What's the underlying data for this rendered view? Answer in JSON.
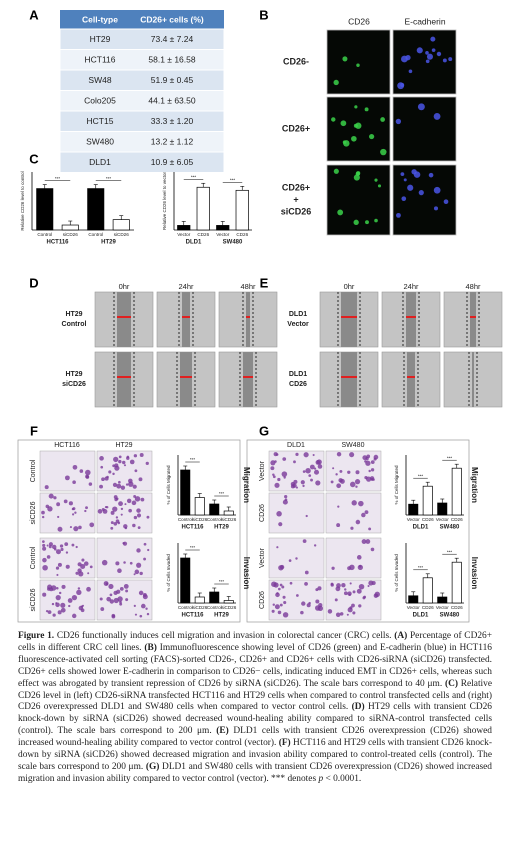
{
  "panel_labels": [
    "A",
    "B",
    "C",
    "D",
    "E",
    "F",
    "G"
  ],
  "table": {
    "header": [
      "Cell-type",
      "CD26+ cells (%)"
    ],
    "rows": [
      [
        "HT29",
        "73.4 ± 7.24"
      ],
      [
        "HCT116",
        "58.1 ± 16.58"
      ],
      [
        "SW48",
        "51.9 ± 0.45"
      ],
      [
        "Colo205",
        "44.1 ± 63.50"
      ],
      [
        "HCT15",
        "33.3 ± 1.20"
      ],
      [
        "SW480",
        "13.2 ± 1.12"
      ],
      [
        "DLD1",
        "10.9 ± 6.05"
      ]
    ]
  },
  "panel_b": {
    "columns": [
      "CD26",
      "E-cadherin"
    ],
    "rows": [
      [
        "CD26-"
      ],
      [
        "CD26+"
      ],
      [
        "CD26+",
        "+",
        "siCD26"
      ]
    ]
  },
  "panel_d": {
    "times": [
      "0hr",
      "24hr",
      "48hr"
    ],
    "rows": [
      [
        "HT29",
        "Control"
      ],
      [
        "HT29",
        "siCD26"
      ]
    ]
  },
  "panel_e": {
    "times": [
      "0hr",
      "24hr",
      "48hr"
    ],
    "rows": [
      [
        "DLD1",
        "Vector"
      ],
      [
        "DLD1",
        "CD26"
      ]
    ]
  },
  "panel_f": {
    "columns": [
      "HCT116",
      "HT29"
    ],
    "rows": [
      "Control",
      "siCD26",
      "Control",
      "siCD26"
    ]
  },
  "panel_g": {
    "columns": [
      "DLD1",
      "SW480"
    ],
    "rows": [
      "Vector",
      "CD26",
      "Vector",
      "CD26"
    ]
  },
  "charts": [
    {
      "type": "bar",
      "y_label": "Relative CD26 level to control",
      "categories": [
        "Control",
        "siCD26",
        "Control",
        "siCD26"
      ],
      "groups": [
        "HCT116",
        "HT29"
      ],
      "values": [
        1.0,
        0.12,
        1.0,
        0.25
      ],
      "colors": [
        "#000000",
        "#ffffff",
        "#000000",
        "#ffffff"
      ],
      "ylim": [
        0,
        1.4
      ],
      "annotations": [
        "***",
        "***"
      ]
    },
    {
      "type": "bar",
      "y_label": "Relative CD26 level to vector",
      "categories": [
        "Vector",
        "CD26",
        "Vector",
        "CD26"
      ],
      "groups": [
        "DLD1",
        "SW480"
      ],
      "values": [
        0.15,
        1.4,
        0.15,
        1.3
      ],
      "colors": [
        "#000000",
        "#ffffff",
        "#000000",
        "#ffffff"
      ],
      "ylim": [
        0,
        1.9
      ],
      "annotations": [
        "***",
        "***"
      ]
    },
    {
      "type": "bar",
      "y_label": "% of Cells Migrated",
      "side_label": "Migration",
      "categories": [
        "Control",
        "siCD26",
        "Control",
        "siCD26"
      ],
      "groups": [
        "HCT116",
        "HT29"
      ],
      "values": [
        90,
        35,
        22,
        8
      ],
      "colors": [
        "#000000",
        "#ffffff",
        "#000000",
        "#ffffff"
      ],
      "ylim": [
        0,
        120
      ],
      "annotations": [
        "***",
        "***"
      ]
    },
    {
      "type": "bar",
      "y_label": "% of Cells Invaded",
      "side_label": "Invasion",
      "categories": [
        "Control",
        "siCD26",
        "Control",
        "siCD26"
      ],
      "groups": [
        "HCT116",
        "HT29"
      ],
      "values": [
        90,
        12,
        22,
        5
      ],
      "colors": [
        "#000000",
        "#ffffff",
        "#000000",
        "#ffffff"
      ],
      "ylim": [
        0,
        120
      ],
      "annotations": [
        "***",
        "***"
      ]
    },
    {
      "type": "bar",
      "y_label": "% of Cells Migrated",
      "side_label": "Migration",
      "categories": [
        "Vector",
        "CD26",
        "Vector",
        "CD26"
      ],
      "groups": [
        "DLD1",
        "SW480"
      ],
      "values": [
        18,
        48,
        20,
        78
      ],
      "colors": [
        "#000000",
        "#ffffff",
        "#000000",
        "#ffffff"
      ],
      "ylim": [
        0,
        100
      ],
      "annotations": [
        "***",
        "***"
      ]
    },
    {
      "type": "bar",
      "y_label": "% of Cells Invaded",
      "side_label": "Invasion",
      "categories": [
        "Vector",
        "CD26",
        "Vector",
        "CD26"
      ],
      "groups": [
        "DLD1",
        "SW480"
      ],
      "values": [
        12,
        42,
        10,
        68
      ],
      "colors": [
        "#000000",
        "#ffffff",
        "#000000",
        "#ffffff"
      ],
      "ylim": [
        0,
        100
      ],
      "annotations": [
        "***",
        "***"
      ]
    }
  ],
  "caption": {
    "runs": [
      "Figure 1.",
      " CD26 functionally induces cell migration and invasion in colorectal cancer (CRC) cells. ",
      "(A)",
      " Percentage of CD26+ cells in different CRC cell lines. ",
      "(B)",
      " Immunofluorescence showing level of CD26 (green) and E-cadherin (blue) in HCT116 fluorescence-activated cell sorting (FACS)-sorted CD26-, CD26+ and CD26+ cells with CD26-siRNA (siCD26) transfected. CD26+ cells showed lower E-cadherin in comparison to CD26− cells, indicating induced EMT in CD26+ cells, whereas such effect was abrogated by transient repression of CD26 by siRNA (siCD26). The scale bars correspond to 40 μm. ",
      "(C)",
      " Relative CD26 level in (left) CD26-siRNA transfected HCT116 and HT29 cells when compared to control transfected cells and (right) CD26 overexpressed DLD1 and SW480 cells when compared to vector control cells. ",
      "(D)",
      " HT29 cells with transient CD26 knock-down by siRNA (siCD26) showed decreased wound-healing ability compared to siRNA-control transfected cells (control). The scale bars correspond to 200 μm. ",
      "(E)",
      " DLD1 cells with transient CD26 overexpression (CD26) showed increased wound-healing ability compared to vector control (vector). ",
      "(F)",
      " HCT116 and HT29 cells with transient CD26 knock-down by siRNA (siCD26) showed decreased migration and invasion ability compared to control-treated cells (control). The scale bars correspond to 200 μm. ",
      "(G)",
      " DLD1 and SW480 cells with transient CD26 overexpression (CD26) showed increased migration and invasion ability compared to vector control (vector). *** denotes ",
      "p",
      " < 0.0001."
    ]
  }
}
